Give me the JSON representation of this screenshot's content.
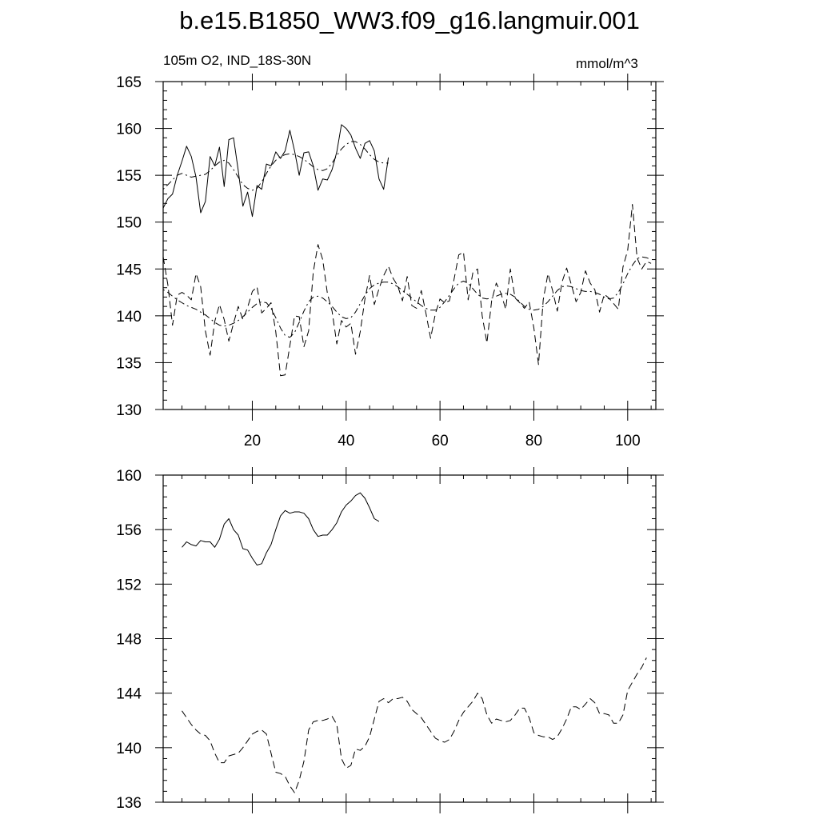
{
  "title": "b.e15.B1850_WW3.f09_g16.langmuir.001",
  "left_label": "105m O2, IND_18S-30N",
  "right_label": "mmol/m^3",
  "colors": {
    "line": "#000000",
    "background": "#ffffff"
  },
  "chart_data": [
    {
      "type": "line",
      "xlim": [
        1,
        106
      ],
      "ylim": [
        130,
        165
      ],
      "x_ticks": [
        20,
        40,
        60,
        80,
        100
      ],
      "y_ticks": [
        130,
        135,
        140,
        145,
        150,
        155,
        160,
        165
      ],
      "x_tick_labels": [
        "20",
        "40",
        "60",
        "80",
        "100"
      ],
      "y_tick_labels": [
        "130",
        "135",
        "140",
        "145",
        "150",
        "155",
        "160",
        "165"
      ],
      "grid": false,
      "series": [
        {
          "style": "solid",
          "x_start": 1,
          "values": [
            151.5,
            152.5,
            153.0,
            155.0,
            156.5,
            158.1,
            157.0,
            154.8,
            151.0,
            152.2,
            157.0,
            156.0,
            158.0,
            153.8,
            158.8,
            159.0,
            155.5,
            151.7,
            153.2,
            150.6,
            153.9,
            153.5,
            156.2,
            156.0,
            157.5,
            156.8,
            157.6,
            159.8,
            157.6,
            155.0,
            157.4,
            157.5,
            156.0,
            153.4,
            154.6,
            154.5,
            155.6,
            157.5,
            160.4,
            160.0,
            159.3,
            157.9,
            156.8,
            158.4,
            158.7,
            157.6,
            154.6,
            153.5,
            156.9
          ]
        },
        {
          "style": "dashdot",
          "x_start": 1,
          "values": [
            153.5,
            154.0,
            154.5,
            155.0,
            155.2,
            155.0,
            154.8,
            154.9,
            155.0,
            155.1,
            155.5,
            156.0,
            156.4,
            156.6,
            156.3,
            155.6,
            154.8,
            154.0,
            153.6,
            153.4,
            153.6,
            154.3,
            155.2,
            156.0,
            156.6,
            157.0,
            157.2,
            157.3,
            157.2,
            157.0,
            156.7,
            156.3,
            155.9,
            155.6,
            155.5,
            155.7,
            156.3,
            157.1,
            157.8,
            158.3,
            158.6,
            158.6,
            158.3,
            157.8,
            157.2,
            156.7,
            156.4,
            156.3,
            156.3
          ]
        },
        {
          "style": "dashed",
          "x_start": 1,
          "values": [
            146.3,
            143.3,
            139.0,
            142.2,
            142.5,
            142.2,
            141.7,
            144.5,
            143.1,
            138.4,
            135.8,
            139.4,
            141.2,
            139.6,
            137.3,
            139.2,
            141.0,
            139.6,
            140.9,
            142.6,
            143.1,
            140.3,
            140.8,
            141.4,
            138.3,
            133.6,
            133.7,
            136.8,
            140.0,
            139.9,
            136.7,
            138.4,
            144.7,
            147.6,
            146.0,
            142.4,
            140.5,
            137.0,
            139.5,
            138.8,
            139.2,
            135.9,
            138.3,
            141.8,
            144.3,
            141.2,
            142.9,
            144.3,
            145.3,
            144.0,
            143.2,
            141.6,
            144.2,
            141.1,
            140.8,
            142.7,
            140.3,
            137.6,
            140.2,
            141.8,
            141.4,
            141.6,
            143.9,
            146.5,
            146.8,
            141.7,
            144.6,
            145.0,
            140.0,
            137.1,
            141.6,
            143.5,
            142.4,
            140.7,
            145.0,
            141.9,
            141.4,
            140.8,
            141.5,
            138.7,
            134.8,
            141.7,
            144.5,
            142.7,
            140.5,
            143.6,
            145.1,
            143.3,
            141.5,
            142.5,
            144.8,
            143.5,
            142.8,
            140.4,
            142.3,
            141.9,
            141.3,
            140.7,
            145.2,
            147.0,
            151.9,
            146.2,
            145.0,
            145.8,
            145.6
          ]
        },
        {
          "style": "dashdot",
          "x_start": 1,
          "values": [
            142.8,
            142.5,
            142.1,
            141.7,
            141.4,
            141.1,
            140.9,
            140.7,
            140.4,
            140.1,
            139.7,
            139.3,
            139.0,
            138.9,
            139.0,
            139.2,
            139.5,
            139.9,
            140.4,
            140.9,
            141.3,
            141.5,
            141.4,
            140.8,
            139.8,
            138.7,
            137.9,
            137.7,
            138.2,
            139.3,
            140.5,
            141.5,
            142.0,
            142.1,
            141.9,
            141.5,
            141.0,
            140.4,
            139.9,
            139.7,
            139.8,
            140.4,
            141.3,
            142.2,
            142.9,
            143.3,
            143.5,
            143.6,
            143.6,
            143.4,
            143.1,
            142.7,
            142.3,
            141.9,
            141.5,
            141.1,
            140.8,
            140.6,
            140.6,
            140.9,
            141.5,
            142.2,
            142.9,
            143.5,
            143.7,
            143.5,
            142.9,
            142.3,
            141.9,
            141.8,
            141.9,
            142.1,
            142.3,
            142.4,
            142.3,
            142.0,
            141.5,
            141.0,
            140.7,
            140.6,
            140.7,
            141.0,
            141.5,
            142.1,
            142.7,
            143.1,
            143.2,
            143.1,
            142.9,
            142.7,
            142.6,
            142.6,
            142.5,
            142.3,
            142.0,
            141.8,
            141.9,
            142.5,
            143.4,
            144.5,
            145.4,
            146.1,
            146.3,
            146.2,
            146.0
          ]
        }
      ]
    },
    {
      "type": "line",
      "xlim": [
        1,
        106
      ],
      "ylim": [
        136,
        160
      ],
      "x_ticks": [
        20,
        40,
        60,
        80,
        100
      ],
      "y_ticks": [
        136,
        140,
        144,
        148,
        152,
        156,
        160
      ],
      "y_tick_labels": [
        "136",
        "140",
        "144",
        "148",
        "152",
        "156",
        "160"
      ],
      "grid": false,
      "series": [
        {
          "style": "solid",
          "x_start": 5,
          "values": [
            154.7,
            155.1,
            154.9,
            154.8,
            155.2,
            155.1,
            155.1,
            154.7,
            155.3,
            156.4,
            156.8,
            156.0,
            155.6,
            154.6,
            154.5,
            153.9,
            153.4,
            153.5,
            154.3,
            154.9,
            156.0,
            157.0,
            157.4,
            157.2,
            157.3,
            157.3,
            157.2,
            156.8,
            156.0,
            155.5,
            155.6,
            155.6,
            156.0,
            156.5,
            157.3,
            157.8,
            158.1,
            158.5,
            158.7,
            158.3,
            157.6,
            156.8,
            156.6
          ]
        },
        {
          "style": "dashed",
          "x_start": 5,
          "values": [
            142.7,
            142.2,
            141.7,
            141.3,
            141.0,
            140.9,
            140.5,
            139.6,
            138.9,
            138.9,
            139.4,
            139.5,
            139.6,
            140.0,
            140.5,
            141.0,
            141.2,
            141.3,
            141.0,
            139.6,
            138.2,
            138.1,
            137.9,
            137.2,
            136.7,
            137.6,
            139.0,
            141.3,
            141.9,
            142.0,
            142.0,
            142.1,
            142.3,
            141.7,
            139.2,
            138.5,
            138.7,
            139.9,
            139.8,
            140.1,
            140.8,
            142.1,
            143.4,
            143.6,
            143.3,
            143.6,
            143.6,
            143.7,
            143.4,
            142.8,
            142.5,
            142.2,
            141.7,
            141.2,
            140.7,
            140.5,
            140.4,
            140.6,
            141.2,
            142.0,
            142.6,
            143.0,
            143.4,
            144.0,
            143.6,
            142.4,
            141.8,
            142.1,
            142.0,
            141.9,
            142.0,
            142.4,
            142.9,
            142.9,
            142.2,
            141.1,
            140.9,
            140.8,
            140.8,
            140.6,
            140.8,
            141.4,
            142.1,
            143.0,
            143.0,
            142.8,
            143.2,
            143.6,
            143.3,
            142.5,
            142.5,
            142.4,
            141.8,
            141.8,
            142.4,
            144.2,
            144.8,
            145.4,
            145.9,
            146.6
          ]
        }
      ]
    }
  ]
}
